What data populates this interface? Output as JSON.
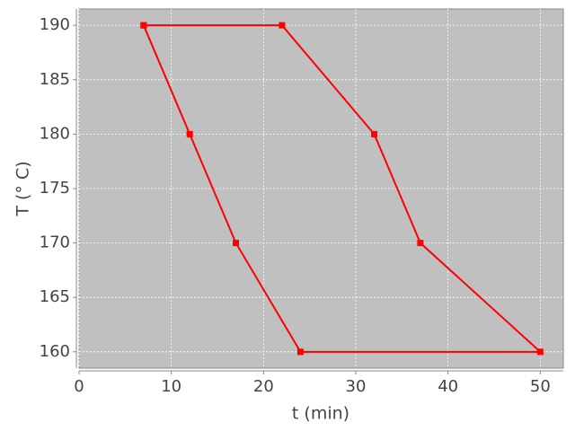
{
  "chart_data": {
    "type": "line",
    "xlabel": "t (min)",
    "ylabel": "T (° C)",
    "x": [
      7,
      22,
      32,
      37,
      50,
      24,
      17,
      12,
      7
    ],
    "values": [
      190,
      190,
      180,
      170,
      160,
      160,
      170,
      180,
      190
    ],
    "color": "#ff0000",
    "marker": "square",
    "background": "#c0c0c0",
    "xlim": [
      0,
      52.5
    ],
    "ylim": [
      158.5,
      191.5
    ],
    "xticks": [
      0,
      10,
      20,
      30,
      40,
      50
    ],
    "yticks": [
      160,
      165,
      170,
      175,
      180,
      185,
      190
    ],
    "grid": true
  }
}
